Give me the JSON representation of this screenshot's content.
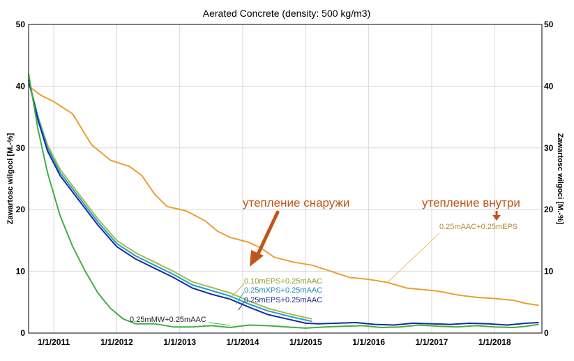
{
  "chart_data": {
    "type": "line",
    "title": "Aerated Concrete (density: 500 kg/m3)",
    "ylabel_left": "Zawartosc wilgoci [M.-%]",
    "ylabel_right": "Zawartosc wilgoci [M.-%]",
    "ylim": [
      0,
      50
    ],
    "yticks": [
      0,
      10,
      20,
      30,
      40,
      50
    ],
    "xlim": [
      2010.6,
      2018.75
    ],
    "xticks": [
      {
        "value": 2011,
        "label": "1/1/2011"
      },
      {
        "value": 2012,
        "label": "1/1/2012"
      },
      {
        "value": 2013,
        "label": "1/1/2013"
      },
      {
        "value": 2014,
        "label": "1/1/2014"
      },
      {
        "value": 2015,
        "label": "1/1/2015"
      },
      {
        "value": 2016,
        "label": "1/1/2016"
      },
      {
        "value": 2017,
        "label": "1/1/2017"
      },
      {
        "value": 2018,
        "label": "1/1/2018"
      }
    ],
    "series": [
      {
        "name": "0.25mAAC+0.25mEPS",
        "color": "#e8a032",
        "points": [
          [
            2010.6,
            40
          ],
          [
            2010.8,
            38.5
          ],
          [
            2011.0,
            37.5
          ],
          [
            2011.3,
            35.5
          ],
          [
            2011.6,
            30.5
          ],
          [
            2011.9,
            28
          ],
          [
            2012.2,
            27
          ],
          [
            2012.4,
            25.5
          ],
          [
            2012.6,
            22.5
          ],
          [
            2012.8,
            20.5
          ],
          [
            2013.1,
            19.8
          ],
          [
            2013.4,
            18.2
          ],
          [
            2013.6,
            16.5
          ],
          [
            2013.8,
            15.5
          ],
          [
            2014.1,
            14.7
          ],
          [
            2014.3,
            13.7
          ],
          [
            2014.5,
            12.3
          ],
          [
            2014.8,
            11.5
          ],
          [
            2015.1,
            11.0
          ],
          [
            2015.4,
            10.0
          ],
          [
            2015.7,
            9.0
          ],
          [
            2016.0,
            8.7
          ],
          [
            2016.3,
            8.2
          ],
          [
            2016.6,
            7.3
          ],
          [
            2016.9,
            7.0
          ],
          [
            2017.1,
            6.8
          ],
          [
            2017.4,
            6.2
          ],
          [
            2017.7,
            5.8
          ],
          [
            2018.0,
            5.6
          ],
          [
            2018.3,
            5.3
          ],
          [
            2018.5,
            4.8
          ],
          [
            2018.7,
            4.5
          ]
        ]
      },
      {
        "name": "0.10mEPS+0.25mAAC",
        "color": "#a8b84a",
        "points": [
          [
            2010.6,
            41
          ],
          [
            2010.75,
            35
          ],
          [
            2010.9,
            30.5
          ],
          [
            2011.1,
            26.5
          ],
          [
            2011.4,
            22.5
          ],
          [
            2011.7,
            18.5
          ],
          [
            2012.0,
            15
          ],
          [
            2012.3,
            13
          ],
          [
            2012.6,
            11.5
          ],
          [
            2012.9,
            10
          ],
          [
            2013.2,
            8.3
          ],
          [
            2013.5,
            7.4
          ],
          [
            2013.8,
            6.5
          ],
          [
            2014.1,
            5.2
          ],
          [
            2014.4,
            4.0
          ],
          [
            2014.7,
            3.2
          ],
          [
            2015.0,
            2.5
          ],
          [
            2015.1,
            2.3
          ]
        ]
      },
      {
        "name": "0.25mXPS+0.25mAAC",
        "color": "#1ea0d0",
        "points": [
          [
            2010.6,
            41
          ],
          [
            2010.75,
            35
          ],
          [
            2010.9,
            30
          ],
          [
            2011.1,
            26
          ],
          [
            2011.4,
            22
          ],
          [
            2011.7,
            18
          ],
          [
            2012.0,
            14.5
          ],
          [
            2012.3,
            12.5
          ],
          [
            2012.6,
            11
          ],
          [
            2012.9,
            9.5
          ],
          [
            2013.2,
            7.8
          ],
          [
            2013.5,
            6.9
          ],
          [
            2013.8,
            6.0
          ],
          [
            2014.1,
            4.7
          ],
          [
            2014.4,
            3.6
          ],
          [
            2014.7,
            2.8
          ],
          [
            2015.0,
            2.1
          ],
          [
            2015.1,
            1.9
          ]
        ]
      },
      {
        "name": "0.25mEPS+0.25mAAC",
        "color": "#1a2a9a",
        "points": [
          [
            2010.6,
            41
          ],
          [
            2010.75,
            34.5
          ],
          [
            2010.9,
            29.5
          ],
          [
            2011.1,
            25.5
          ],
          [
            2011.4,
            21.5
          ],
          [
            2011.7,
            17.5
          ],
          [
            2012.0,
            14
          ],
          [
            2012.3,
            12
          ],
          [
            2012.6,
            10.5
          ],
          [
            2012.9,
            9
          ],
          [
            2013.2,
            7.3
          ],
          [
            2013.5,
            6.3
          ],
          [
            2013.8,
            5.5
          ],
          [
            2014.1,
            4.2
          ],
          [
            2014.4,
            3.0
          ],
          [
            2014.7,
            2.3
          ],
          [
            2015.0,
            1.6
          ],
          [
            2015.2,
            1.5
          ],
          [
            2015.5,
            1.6
          ],
          [
            2015.8,
            1.7
          ],
          [
            2016.1,
            1.4
          ],
          [
            2016.4,
            1.3
          ],
          [
            2016.7,
            1.6
          ],
          [
            2017.0,
            1.5
          ],
          [
            2017.3,
            1.4
          ],
          [
            2017.6,
            1.6
          ],
          [
            2017.9,
            1.5
          ],
          [
            2018.2,
            1.3
          ],
          [
            2018.5,
            1.6
          ],
          [
            2018.7,
            1.7
          ]
        ]
      },
      {
        "name": "0.25mMW+0.25mAAC",
        "color": "#40b040",
        "points": [
          [
            2010.6,
            42
          ],
          [
            2010.75,
            33
          ],
          [
            2010.9,
            26
          ],
          [
            2011.1,
            19
          ],
          [
            2011.3,
            14
          ],
          [
            2011.5,
            10
          ],
          [
            2011.7,
            6.5
          ],
          [
            2011.9,
            4
          ],
          [
            2012.1,
            2.3
          ],
          [
            2012.3,
            1.5
          ],
          [
            2012.6,
            1.5
          ],
          [
            2012.9,
            1.0
          ],
          [
            2013.2,
            1.0
          ],
          [
            2013.5,
            1.2
          ],
          [
            2013.8,
            0.9
          ],
          [
            2014.1,
            1.3
          ],
          [
            2014.4,
            1.2
          ],
          [
            2014.7,
            1.0
          ],
          [
            2015.0,
            0.8
          ],
          [
            2015.3,
            1.0
          ],
          [
            2015.6,
            1.1
          ],
          [
            2015.9,
            1.2
          ],
          [
            2016.2,
            0.9
          ],
          [
            2016.5,
            1.0
          ],
          [
            2016.8,
            1.3
          ],
          [
            2017.1,
            1.1
          ],
          [
            2017.4,
            1.0
          ],
          [
            2017.7,
            1.2
          ],
          [
            2018.0,
            1.0
          ],
          [
            2018.3,
            0.9
          ],
          [
            2018.5,
            1.1
          ],
          [
            2018.7,
            1.4
          ]
        ]
      }
    ],
    "series_labels": [
      {
        "text": "0.25mAAC+0.25mEPS",
        "color": "#b5892e"
      },
      {
        "text": "0.10mEPS+0.25mAAC",
        "color": "#8a9a2a"
      },
      {
        "text": "0.25mXPS+0.25mAAC",
        "color": "#1e8ab8"
      },
      {
        "text": "0.25mEPS+0.25mAAC",
        "color": "#1a2a8a"
      },
      {
        "text": "0.25mMW+0.25mAAC",
        "color": "#222222"
      }
    ],
    "annotations": [
      {
        "text": "утепление снаружи",
        "color": "#c0561a"
      },
      {
        "text": "утепление внутри",
        "color": "#c0561a"
      }
    ]
  }
}
